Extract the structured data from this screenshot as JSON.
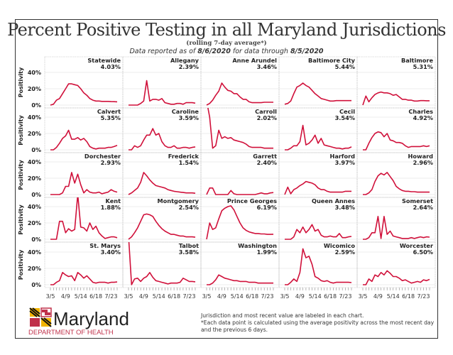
{
  "header": {
    "title": "Percent Positive Testing in all Maryland Jurisdictions",
    "subtitle": "(rolling 7-day average*)",
    "reported_prefix": "Data reported as of ",
    "reported_date": "8/6/2020",
    "reported_mid": " for data through ",
    "through_date": "8/5/2020"
  },
  "footer": {
    "logo_word": "Maryland",
    "logo_dept": "DEPARTMENT OF HEALTH",
    "note1": "Jurisdiction and most recent value are labeled in each chart.",
    "note2": "*Each data point is calculated using the average positivity across the most recent day and the previous 6 days."
  },
  "colors": {
    "line": "#d0103a",
    "grid": "#e8e8e8",
    "border": "#bbbbbb"
  },
  "chart_data": {
    "type": "line",
    "layout": "small-multiples 5x5",
    "ylabel": "Positivity",
    "y_ticks": [
      "0%",
      "20%",
      "40%"
    ],
    "ylim": [
      0,
      50
    ],
    "x_ticks": [
      "3/5",
      "4/9",
      "5/14",
      "6/18",
      "7/23"
    ],
    "x_dates_weekly_from": "3/5",
    "x": [
      "3/5",
      "3/12",
      "3/19",
      "3/26",
      "4/2",
      "4/9",
      "4/16",
      "4/23",
      "4/30",
      "5/7",
      "5/14",
      "5/21",
      "5/28",
      "6/4",
      "6/11",
      "6/18",
      "6/25",
      "7/2",
      "7/9",
      "7/16",
      "7/23",
      "7/30",
      "8/5"
    ],
    "series": [
      {
        "name": "Statewide",
        "latest": "4.03%",
        "values": [
          0,
          1,
          6,
          8,
          14,
          20,
          26,
          26,
          25,
          24,
          20,
          15,
          12,
          8,
          6,
          5,
          5,
          4.5,
          4.5,
          4.5,
          4.3,
          4.2,
          4.03
        ]
      },
      {
        "name": "Allegany",
        "latest": "2.39%",
        "values": [
          0,
          0,
          0,
          0,
          2,
          5,
          30,
          5,
          7,
          7,
          6,
          8,
          3,
          2,
          1,
          1,
          2,
          2,
          1,
          3,
          3,
          3,
          2.39
        ]
      },
      {
        "name": "Anne Arundel",
        "latest": "3.46%",
        "values": [
          0,
          2,
          6,
          12,
          17,
          27,
          22,
          18,
          17,
          14,
          14,
          10,
          7,
          7,
          4,
          3,
          3,
          3,
          3,
          3.5,
          3.5,
          3.5,
          3.46
        ]
      },
      {
        "name": "Baltimore City",
        "latest": "5.44%",
        "values": [
          1,
          2,
          5,
          14,
          22,
          24,
          27,
          24,
          22,
          18,
          14,
          11,
          8,
          7,
          6,
          5,
          5,
          5.5,
          5.5,
          5.5,
          5.5,
          5.5,
          5.44
        ]
      },
      {
        "name": "Baltimore",
        "latest": "5.31%",
        "values": [
          0,
          11,
          4,
          9,
          13,
          15,
          16,
          15,
          15,
          14,
          12,
          13,
          10,
          7,
          7,
          6,
          6,
          5,
          5,
          5.5,
          5.5,
          5.3,
          5.31
        ]
      },
      {
        "name": "Calvert",
        "latest": "5.35%",
        "values": [
          0,
          0,
          3,
          8,
          14,
          17,
          24,
          13,
          13,
          15,
          12,
          14,
          10,
          4,
          2,
          1,
          2,
          2,
          2,
          3,
          3,
          4,
          5.35
        ]
      },
      {
        "name": "Caroline",
        "latest": "3.59%",
        "values": [
          0,
          0,
          5,
          3,
          5,
          12,
          18,
          18,
          26,
          18,
          20,
          10,
          5,
          3,
          3,
          5,
          2,
          2,
          3,
          3,
          2,
          3,
          3.59
        ]
      },
      {
        "name": "Carroll",
        "latest": "2.02%",
        "values": [
          60,
          40,
          2,
          5,
          24,
          14,
          16,
          14,
          15,
          12,
          11,
          10,
          9,
          7,
          4,
          3,
          3,
          3,
          3,
          2,
          2,
          2,
          2.02
        ]
      },
      {
        "name": "Cecil",
        "latest": "3.54%",
        "values": [
          0,
          0,
          2,
          5,
          5,
          10,
          30,
          6,
          8,
          12,
          18,
          8,
          14,
          6,
          5,
          4,
          3,
          2,
          2,
          1,
          2,
          2,
          3.54
        ]
      },
      {
        "name": "Charles",
        "latest": "4.92%",
        "values": [
          0,
          0,
          8,
          15,
          20,
          22,
          21,
          16,
          20,
          12,
          11,
          9,
          9,
          8,
          5,
          3,
          4,
          4,
          4,
          4,
          5,
          4,
          4.92
        ]
      },
      {
        "name": "Dorchester",
        "latest": "2.93%",
        "values": [
          0,
          0,
          0,
          0,
          2,
          10,
          10,
          27,
          14,
          25,
          12,
          2,
          6,
          3,
          2,
          2,
          3,
          1,
          2,
          3,
          6,
          4,
          2.93
        ]
      },
      {
        "name": "Frederick",
        "latest": "1.54%",
        "values": [
          0,
          2,
          5,
          8,
          15,
          27,
          23,
          18,
          14,
          11,
          10,
          9,
          8,
          6,
          5,
          4,
          3.5,
          3,
          2.5,
          2,
          2,
          2,
          1.54
        ]
      },
      {
        "name": "Garrett",
        "latest": "2.40%",
        "values": [
          0,
          8,
          8,
          0,
          0,
          0,
          0,
          0,
          5,
          1,
          0,
          0,
          0,
          0,
          0,
          0,
          0,
          1,
          2,
          1,
          1,
          2,
          2.4
        ]
      },
      {
        "name": "Harford",
        "latest": "3.97%",
        "values": [
          0,
          9,
          1,
          6,
          8,
          11,
          13,
          16,
          15,
          14,
          12,
          8,
          6,
          6,
          4,
          3,
          3,
          3,
          3,
          3,
          4,
          4,
          3.97
        ]
      },
      {
        "name": "Howard",
        "latest": "2.96%",
        "values": [
          0,
          0,
          2,
          6,
          16,
          23,
          26,
          24,
          27,
          22,
          17,
          10,
          7,
          5,
          4,
          4,
          3.5,
          3.5,
          3,
          3,
          3,
          3,
          2.96
        ]
      },
      {
        "name": "Kent",
        "latest": "1.88%",
        "values": [
          0,
          0,
          0,
          22,
          22,
          8,
          13,
          10,
          12,
          55,
          15,
          14,
          10,
          20,
          12,
          16,
          8,
          4,
          1,
          2,
          3,
          3,
          1.88
        ]
      },
      {
        "name": "Montgomery",
        "latest": "2.54%",
        "values": [
          0,
          3,
          8,
          14,
          22,
          30,
          31,
          30,
          28,
          22,
          17,
          13,
          10,
          8,
          6,
          6,
          5,
          4,
          4,
          3,
          3,
          3,
          2.54
        ]
      },
      {
        "name": "Prince Georges",
        "latest": "6.19%",
        "values": [
          0,
          20,
          12,
          14,
          25,
          35,
          38,
          40,
          41,
          36,
          28,
          20,
          14,
          11,
          9,
          8,
          7,
          7,
          6.5,
          6.5,
          6,
          6,
          6.19
        ]
      },
      {
        "name": "Queen Annes",
        "latest": "3.48%",
        "values": [
          0,
          0,
          0,
          3,
          12,
          8,
          15,
          8,
          12,
          18,
          10,
          12,
          5,
          3,
          3,
          4,
          3,
          3,
          7,
          2,
          2,
          3,
          3.48
        ]
      },
      {
        "name": "Somerset",
        "latest": "2.64%",
        "values": [
          0,
          0,
          2,
          8,
          8,
          28,
          1,
          28,
          6,
          10,
          4,
          3,
          2,
          1,
          1,
          1,
          2,
          1,
          2,
          3,
          2,
          3,
          2.64
        ]
      },
      {
        "name": "St. Marys",
        "latest": "3.40%",
        "values": [
          0,
          0,
          3,
          5,
          15,
          12,
          10,
          11,
          5,
          15,
          12,
          8,
          11,
          7,
          3,
          2,
          3,
          3,
          3,
          2,
          3,
          3,
          3.4
        ]
      },
      {
        "name": "Talbot",
        "latest": "3.58%",
        "values": [
          60,
          0,
          7,
          8,
          4,
          8,
          10,
          15,
          9,
          5,
          4,
          3,
          2,
          1,
          2,
          2,
          2,
          3,
          8,
          6,
          4,
          4,
          3.58
        ]
      },
      {
        "name": "Washington",
        "latest": "1.99%",
        "values": [
          0,
          0,
          2,
          6,
          12,
          10,
          8,
          7,
          6,
          5,
          5,
          4,
          4,
          4,
          3,
          3,
          3,
          2,
          2,
          2,
          2,
          2,
          1.99
        ]
      },
      {
        "name": "Wicomico",
        "latest": "2.59%",
        "values": [
          0,
          0,
          3,
          7,
          4,
          15,
          44,
          33,
          35,
          25,
          10,
          8,
          5,
          4,
          5,
          3,
          2,
          3,
          3,
          3,
          3,
          3,
          2.59
        ]
      },
      {
        "name": "Worcester",
        "latest": "6.50%",
        "values": [
          0,
          0,
          7,
          4,
          12,
          10,
          15,
          12,
          17,
          14,
          10,
          10,
          8,
          5,
          6,
          4,
          2,
          3,
          4,
          3,
          6,
          5,
          6.5
        ]
      }
    ]
  }
}
